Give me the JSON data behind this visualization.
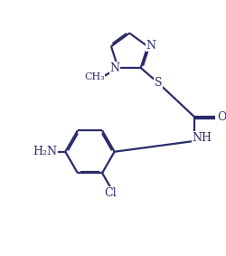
{
  "bg_color": "#ffffff",
  "line_color": "#2b2b6b",
  "line_width": 1.6,
  "figsize": [
    2.5,
    2.83
  ],
  "dpi": 100,
  "xlim": [
    0,
    10
  ],
  "ylim": [
    0,
    11.32
  ],
  "fs": 9.0,
  "fs_small": 8.0
}
